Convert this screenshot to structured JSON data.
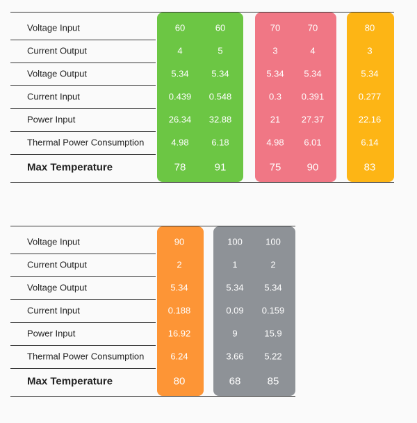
{
  "tables": [
    {
      "row_labels": [
        "Voltage Input",
        "Current Output",
        "Voltage Output",
        "Current Input",
        "Power Input",
        "Thermal Power Consumption",
        "Max Temperature"
      ],
      "groups": [
        {
          "color": "#6cc644",
          "columns": [
            [
              60,
              4,
              5.34,
              0.439,
              26.34,
              4.98,
              78
            ],
            [
              60,
              5,
              5.34,
              0.548,
              32.88,
              6.18,
              91
            ]
          ]
        },
        {
          "color": "#f07785",
          "columns": [
            [
              70,
              3,
              5.34,
              0.3,
              21,
              4.98,
              75
            ],
            [
              70,
              4,
              5.34,
              0.391,
              27.37,
              6.01,
              90
            ]
          ]
        },
        {
          "color": "#fdb515",
          "columns": [
            [
              80,
              3,
              5.34,
              0.277,
              22.16,
              6.14,
              83
            ]
          ]
        }
      ]
    },
    {
      "row_labels": [
        "Voltage Input",
        "Current Output",
        "Voltage Output",
        "Current Input",
        "Power Input",
        "Thermal Power Consumption",
        "Max Temperature"
      ],
      "groups": [
        {
          "color": "#fd9536",
          "columns": [
            [
              90,
              2,
              5.34,
              0.188,
              16.92,
              6.24,
              80
            ]
          ]
        },
        {
          "color": "#8e9297",
          "columns": [
            [
              100,
              1,
              5.34,
              0.09,
              9,
              3.66,
              68
            ],
            [
              100,
              2,
              5.34,
              0.159,
              15.9,
              5.22,
              85
            ]
          ]
        }
      ]
    }
  ]
}
